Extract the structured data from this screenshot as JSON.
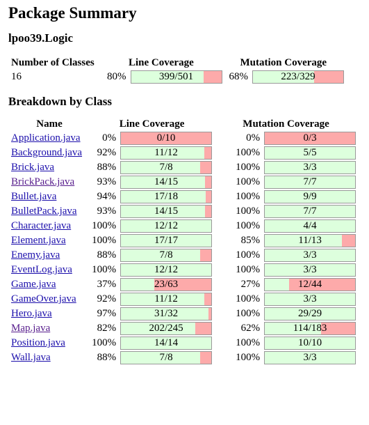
{
  "title": "Package Summary",
  "package_name": "lpoo39.Logic",
  "summary": {
    "headers": {
      "classes": "Number of Classes",
      "line": "Line Coverage",
      "mutation": "Mutation Coverage"
    },
    "num_classes": "16",
    "line_pct": "80%",
    "line_text": "399/501",
    "line_fraction": 0.8,
    "mutation_pct": "68%",
    "mutation_text": "223/329",
    "mutation_fraction": 0.68
  },
  "breakdown_title": "Breakdown by Class",
  "breakdown_headers": {
    "name": "Name",
    "line": "Line Coverage",
    "mutation": "Mutation Coverage"
  },
  "colors": {
    "covered": "#ddffdd",
    "uncovered": "#fdaaaa",
    "link": "#1a0dab",
    "visited": "#551a8b"
  },
  "classes": [
    {
      "name": "Application.java",
      "line_pct": "0%",
      "line_text": "0/10",
      "line_fraction": 0.0,
      "mut_pct": "0%",
      "mut_text": "0/3",
      "mut_fraction": 0.0
    },
    {
      "name": "Background.java",
      "line_pct": "92%",
      "line_text": "11/12",
      "line_fraction": 0.92,
      "mut_pct": "100%",
      "mut_text": "5/5",
      "mut_fraction": 1.0
    },
    {
      "name": "Brick.java",
      "line_pct": "88%",
      "line_text": "7/8",
      "line_fraction": 0.88,
      "mut_pct": "100%",
      "mut_text": "3/3",
      "mut_fraction": 1.0
    },
    {
      "name": "BrickPack.java",
      "line_pct": "93%",
      "line_text": "14/15",
      "line_fraction": 0.93,
      "mut_pct": "100%",
      "mut_text": "7/7",
      "mut_fraction": 1.0,
      "visited": true
    },
    {
      "name": "Bullet.java",
      "line_pct": "94%",
      "line_text": "17/18",
      "line_fraction": 0.94,
      "mut_pct": "100%",
      "mut_text": "9/9",
      "mut_fraction": 1.0
    },
    {
      "name": "BulletPack.java",
      "line_pct": "93%",
      "line_text": "14/15",
      "line_fraction": 0.93,
      "mut_pct": "100%",
      "mut_text": "7/7",
      "mut_fraction": 1.0
    },
    {
      "name": "Character.java",
      "line_pct": "100%",
      "line_text": "12/12",
      "line_fraction": 1.0,
      "mut_pct": "100%",
      "mut_text": "4/4",
      "mut_fraction": 1.0
    },
    {
      "name": "Element.java",
      "line_pct": "100%",
      "line_text": "17/17",
      "line_fraction": 1.0,
      "mut_pct": "85%",
      "mut_text": "11/13",
      "mut_fraction": 0.85
    },
    {
      "name": "Enemy.java",
      "line_pct": "88%",
      "line_text": "7/8",
      "line_fraction": 0.88,
      "mut_pct": "100%",
      "mut_text": "3/3",
      "mut_fraction": 1.0
    },
    {
      "name": "EventLog.java",
      "line_pct": "100%",
      "line_text": "12/12",
      "line_fraction": 1.0,
      "mut_pct": "100%",
      "mut_text": "3/3",
      "mut_fraction": 1.0
    },
    {
      "name": "Game.java",
      "line_pct": "37%",
      "line_text": "23/63",
      "line_fraction": 0.37,
      "mut_pct": "27%",
      "mut_text": "12/44",
      "mut_fraction": 0.27
    },
    {
      "name": "GameOver.java",
      "line_pct": "92%",
      "line_text": "11/12",
      "line_fraction": 0.92,
      "mut_pct": "100%",
      "mut_text": "3/3",
      "mut_fraction": 1.0
    },
    {
      "name": "Hero.java",
      "line_pct": "97%",
      "line_text": "31/32",
      "line_fraction": 0.97,
      "mut_pct": "100%",
      "mut_text": "29/29",
      "mut_fraction": 1.0
    },
    {
      "name": "Map.java",
      "line_pct": "82%",
      "line_text": "202/245",
      "line_fraction": 0.82,
      "mut_pct": "62%",
      "mut_text": "114/183",
      "mut_fraction": 0.62,
      "visited": true
    },
    {
      "name": "Position.java",
      "line_pct": "100%",
      "line_text": "14/14",
      "line_fraction": 1.0,
      "mut_pct": "100%",
      "mut_text": "10/10",
      "mut_fraction": 1.0
    },
    {
      "name": "Wall.java",
      "line_pct": "88%",
      "line_text": "7/8",
      "line_fraction": 0.88,
      "mut_pct": "100%",
      "mut_text": "3/3",
      "mut_fraction": 1.0
    }
  ]
}
